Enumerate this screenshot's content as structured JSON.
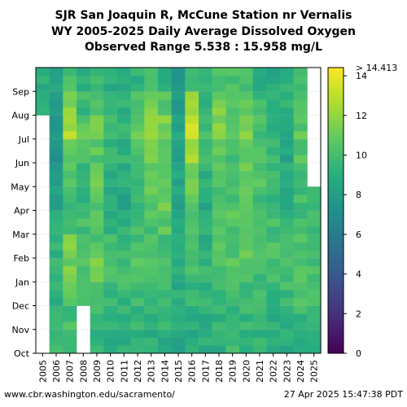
{
  "chart_data": {
    "type": "heatmap",
    "title_lines": [
      "SJR San Joaquin R, McCune Station nr Vernalis",
      "WY 2005-2025 Daily Average Dissolved Oxygen",
      "Observed Range 5.538 : 15.958 mg/L"
    ],
    "x_categories": [
      "2005",
      "2006",
      "2007",
      "2008",
      "2009",
      "2010",
      "2011",
      "2012",
      "2013",
      "2014",
      "2015",
      "2016",
      "2017",
      "2018",
      "2019",
      "2020",
      "2021",
      "2022",
      "2023",
      "2024",
      "2025"
    ],
    "y_month_ticks": [
      "Oct",
      "Nov",
      "Dec",
      "Jan",
      "Feb",
      "Mar",
      "Apr",
      "May",
      "Jun",
      "Jul",
      "Aug",
      "Sep"
    ],
    "y_direction": "Oct at bottom, Sep at top",
    "colorbar": {
      "colormap": "viridis",
      "min": 0,
      "max": 14.413,
      "ticks": [
        0,
        2,
        4,
        6,
        8,
        10,
        12,
        14
      ],
      "top_label": "> 14.413",
      "position": "right"
    },
    "grid": true,
    "grid_style": "dotted horizontal at month ticks",
    "missing_data_color": "#ffffff",
    "monthly_mean_mg_L": [
      [
        null,
        null,
        null,
        null,
        null,
        null,
        null,
        null,
        null,
        null,
        9.5,
        9.0
      ],
      [
        9.6,
        9.4,
        9.4,
        9.6,
        9.3,
        9.2,
        8.4,
        7.9,
        7.6,
        7.9,
        8.3,
        8.2
      ],
      [
        9.2,
        10.0,
        10.4,
        11.2,
        11.4,
        10.2,
        9.6,
        10.2,
        11.1,
        12.6,
        11.6,
        10.2
      ],
      [
        null,
        null,
        9.8,
        10.6,
        9.9,
        10.0,
        9.5,
        9.4,
        10.0,
        10.6,
        9.8,
        9.0
      ],
      [
        9.2,
        9.6,
        10.2,
        11.1,
        10.3,
        10.2,
        10.6,
        10.8,
        10.5,
        11.4,
        10.6,
        9.4
      ],
      [
        9.2,
        9.4,
        9.6,
        10.0,
        10.0,
        9.3,
        8.8,
        9.0,
        9.6,
        10.2,
        9.8,
        9.0
      ],
      [
        9.0,
        9.2,
        9.6,
        9.8,
        9.7,
        9.2,
        8.6,
        8.8,
        9.2,
        9.6,
        9.2,
        8.8
      ],
      [
        9.2,
        9.6,
        10.0,
        10.3,
        10.0,
        10.0,
        9.6,
        10.0,
        10.4,
        10.8,
        10.2,
        9.4
      ],
      [
        9.0,
        9.4,
        9.8,
        10.1,
        10.2,
        10.3,
        10.6,
        11.2,
        12.1,
        12.6,
        11.2,
        9.6
      ],
      [
        8.8,
        9.2,
        9.8,
        10.2,
        10.2,
        10.6,
        11.0,
        10.6,
        11.0,
        11.4,
        10.4,
        9.2
      ],
      [
        8.6,
        8.8,
        9.0,
        9.4,
        9.0,
        8.4,
        8.4,
        8.4,
        8.2,
        8.2,
        8.2,
        8.0
      ],
      [
        8.8,
        9.2,
        9.6,
        9.9,
        10.2,
        10.6,
        11.0,
        11.6,
        12.6,
        13.6,
        12.0,
        9.6
      ],
      [
        9.0,
        9.2,
        9.4,
        9.6,
        9.2,
        9.0,
        8.8,
        9.0,
        9.4,
        10.0,
        9.6,
        9.2
      ],
      [
        9.2,
        9.4,
        9.8,
        10.4,
        10.4,
        10.2,
        10.0,
        10.4,
        11.0,
        11.6,
        11.4,
        10.2
      ],
      [
        9.6,
        9.6,
        9.8,
        10.4,
        10.2,
        10.4,
        10.0,
        10.2,
        10.2,
        10.4,
        10.6,
        10.0
      ],
      [
        9.4,
        9.6,
        9.8,
        10.2,
        10.6,
        10.6,
        10.4,
        10.8,
        11.2,
        11.6,
        11.0,
        9.8
      ],
      [
        9.2,
        9.4,
        9.6,
        10.0,
        10.4,
        10.4,
        10.0,
        10.2,
        10.2,
        10.0,
        9.8,
        9.2
      ],
      [
        9.0,
        9.2,
        9.6,
        10.0,
        10.2,
        10.0,
        9.6,
        9.6,
        9.4,
        9.2,
        9.0,
        8.6
      ],
      [
        9.0,
        9.4,
        9.8,
        10.2,
        10.2,
        9.6,
        9.2,
        8.8,
        8.6,
        8.6,
        9.2,
        9.2
      ],
      [
        9.2,
        9.6,
        10.0,
        10.4,
        10.2,
        10.0,
        10.0,
        10.2,
        10.2,
        10.6,
        10.0,
        9.6
      ],
      [
        9.4,
        9.6,
        9.8,
        10.2,
        10.4,
        9.8,
        9.6,
        null,
        null,
        null,
        null,
        null
      ]
    ]
  },
  "footer": {
    "left": "www.cbr.washington.edu/sacramento/",
    "right": "27 Apr 2025 15:47:38 PDT"
  }
}
